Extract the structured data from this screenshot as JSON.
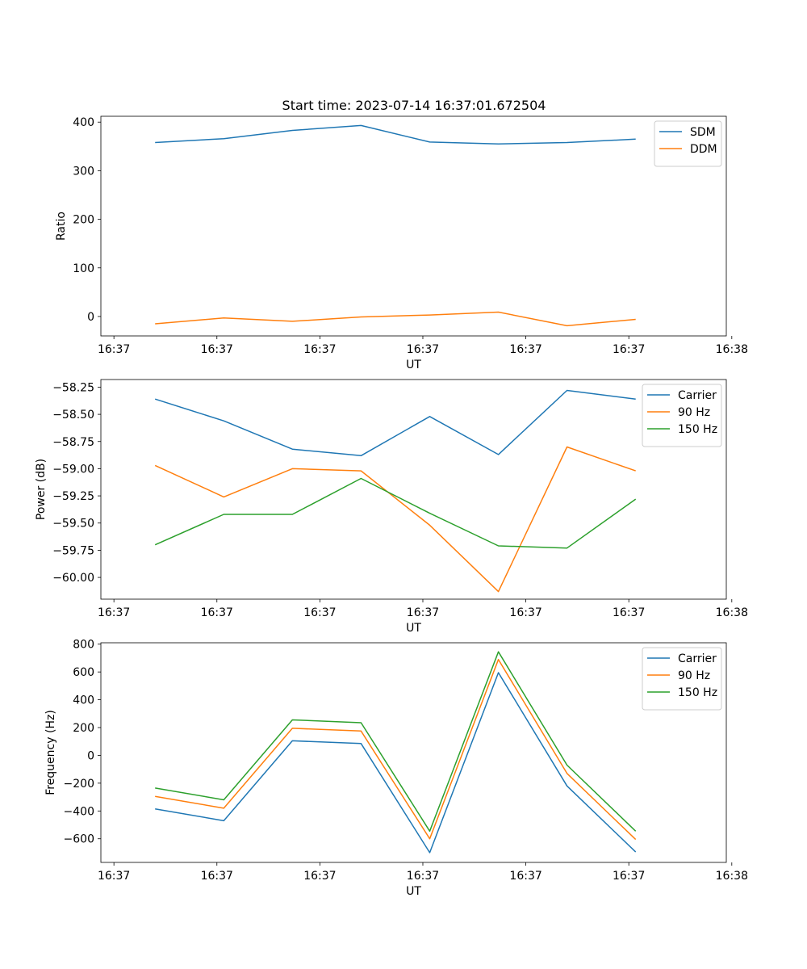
{
  "figure_title": "Start time: 2023-07-14 16:37:01.672504",
  "chart_data": [
    {
      "type": "line",
      "title": "Start time: 2023-07-14 16:37:01.672504",
      "xlabel": "UT",
      "ylabel": "Ratio",
      "x": [
        1,
        2,
        3,
        4,
        5,
        6,
        7,
        8
      ],
      "xlim": [
        0.21,
        9.32
      ],
      "xticks": [
        0.4,
        1.9,
        3.4,
        4.9,
        6.4,
        7.9,
        9.4
      ],
      "xtick_labels": [
        "16:37",
        "16:37",
        "16:37",
        "16:37",
        "16:37",
        "16:37",
        "16:38"
      ],
      "ylim": [
        -40,
        412
      ],
      "yticks": [
        0,
        100,
        200,
        300,
        400
      ],
      "ytick_labels": [
        "0",
        "100",
        "200",
        "300",
        "400"
      ],
      "grid": false,
      "legend_position": "top-right",
      "series": [
        {
          "name": "SDM",
          "color": "#1f77b4",
          "values": [
            358,
            366,
            383,
            393,
            359,
            355,
            358,
            365
          ]
        },
        {
          "name": "DDM",
          "color": "#ff7f0e",
          "values": [
            -15,
            -3,
            -10,
            -1,
            3,
            9,
            -19,
            -6
          ]
        }
      ]
    },
    {
      "type": "line",
      "title": "",
      "xlabel": "UT",
      "ylabel": "Power (dB)",
      "x": [
        1,
        2,
        3,
        4,
        5,
        6,
        7,
        8
      ],
      "xlim": [
        0.21,
        9.32
      ],
      "xticks": [
        0.4,
        1.9,
        3.4,
        4.9,
        6.4,
        7.9,
        9.4
      ],
      "xtick_labels": [
        "16:37",
        "16:37",
        "16:37",
        "16:37",
        "16:37",
        "16:37",
        "16:38"
      ],
      "ylim": [
        -60.2,
        -58.18
      ],
      "yticks": [
        -60.0,
        -59.75,
        -59.5,
        -59.25,
        -59.0,
        -58.75,
        -58.5,
        -58.25
      ],
      "ytick_labels": [
        "−60.00",
        "−59.75",
        "−59.50",
        "−59.25",
        "−59.00",
        "−58.75",
        "−58.50",
        "−58.25"
      ],
      "grid": false,
      "legend_position": "top-right",
      "series": [
        {
          "name": "Carrier",
          "color": "#1f77b4",
          "values": [
            -58.36,
            -58.56,
            -58.82,
            -58.88,
            -58.52,
            -58.87,
            -58.28,
            -58.36
          ]
        },
        {
          "name": "90 Hz",
          "color": "#ff7f0e",
          "values": [
            -58.97,
            -59.26,
            -59.0,
            -59.02,
            -59.52,
            -60.13,
            -58.8,
            -59.02
          ]
        },
        {
          "name": "150 Hz",
          "color": "#2ca02c",
          "values": [
            -59.7,
            -59.42,
            -59.42,
            -59.09,
            -59.41,
            -59.71,
            -59.73,
            -59.28
          ]
        }
      ]
    },
    {
      "type": "line",
      "title": "",
      "xlabel": "UT",
      "ylabel": "Frequency (Hz)",
      "x": [
        1,
        2,
        3,
        4,
        5,
        6,
        7,
        8
      ],
      "xlim": [
        0.21,
        9.32
      ],
      "xticks": [
        0.4,
        1.9,
        3.4,
        4.9,
        6.4,
        7.9,
        9.4
      ],
      "xtick_labels": [
        "16:37",
        "16:37",
        "16:37",
        "16:37",
        "16:37",
        "16:37",
        "16:38"
      ],
      "ylim": [
        -770,
        810
      ],
      "yticks": [
        -600,
        -400,
        -200,
        0,
        200,
        400,
        600,
        800
      ],
      "ytick_labels": [
        "−600",
        "−400",
        "−200",
        "0",
        "200",
        "400",
        "600",
        "800"
      ],
      "grid": false,
      "legend_position": "top-right",
      "series": [
        {
          "name": "Carrier",
          "color": "#1f77b4",
          "values": [
            -385,
            -470,
            105,
            85,
            -700,
            595,
            -220,
            -695
          ]
        },
        {
          "name": "90 Hz",
          "color": "#ff7f0e",
          "values": [
            -295,
            -380,
            195,
            175,
            -600,
            690,
            -130,
            -605
          ]
        },
        {
          "name": "150 Hz",
          "color": "#2ca02c",
          "values": [
            -235,
            -320,
            255,
            235,
            -545,
            745,
            -70,
            -545
          ]
        }
      ]
    }
  ]
}
